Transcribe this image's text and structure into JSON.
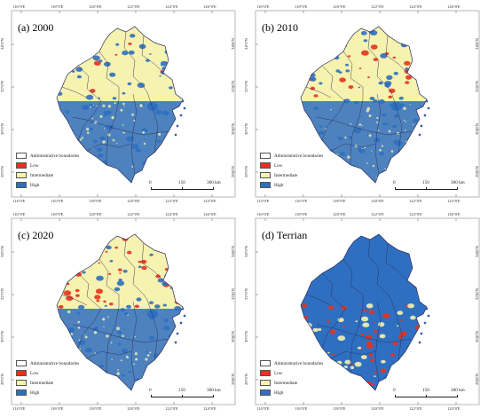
{
  "panels": [
    {
      "id": "a",
      "title": "(a) 2000",
      "theme": "sparse"
    },
    {
      "id": "b",
      "title": "(b) 2010",
      "theme": "medium"
    },
    {
      "id": "c",
      "title": "(c) 2020",
      "theme": "dense"
    },
    {
      "id": "d",
      "title": "(d) Terrian",
      "theme": "terrain"
    }
  ],
  "ticks": {
    "lon_top": [
      "116°0'E",
      "118°0'E",
      "120°0'E",
      "122°0'E",
      "124°0'E",
      "126°0'E"
    ],
    "lon_bottom": [
      "114°0'E",
      "116°0'E",
      "118°0'E",
      "120°0'E",
      "122°0'E",
      "124°0'E"
    ],
    "lat_left": [
      "34°0'N",
      "32°0'N",
      "30°0'N",
      "28°0'N"
    ],
    "lat_right": [
      "34°0'N",
      "32°0'N",
      "30°0'N",
      "28°0'N"
    ]
  },
  "legend": [
    {
      "label": "Administrative boundaries",
      "color": "#ffffff"
    },
    {
      "label": "Low",
      "color": "#e8321e"
    },
    {
      "label": "Intermediate",
      "color": "#f6f2b0"
    },
    {
      "label": "High",
      "color": "#2f6fc1"
    }
  ],
  "scale": {
    "labels": [
      "0",
      "150",
      "300 km"
    ]
  },
  "colors": {
    "low": "#e8321e",
    "intermediate": "#f6f2b0",
    "high": "#2f6fc1",
    "boundary": "#2a2a55",
    "frame": "#888888"
  }
}
